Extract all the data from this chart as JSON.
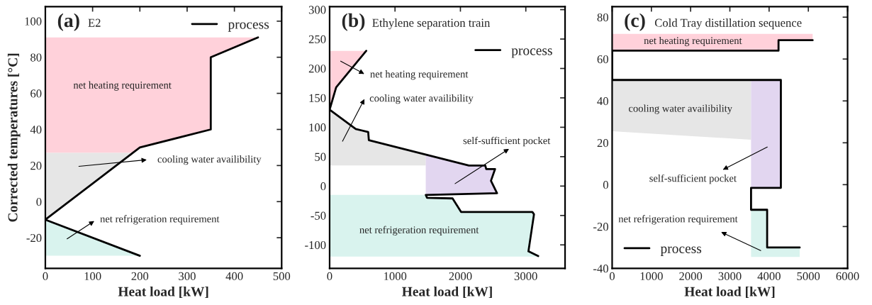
{
  "chart_data": [
    {
      "type": "line",
      "title": "(a)",
      "subtitle": "E2",
      "xlabel": "Heat load [kW]",
      "ylabel": "Corrected temperatures [°C]",
      "xlim": [
        0,
        500
      ],
      "ylim": [
        -37,
        108
      ],
      "xticks": [
        0,
        100,
        200,
        300,
        400,
        500
      ],
      "yticks": [
        -20,
        0,
        20,
        40,
        60,
        80,
        100
      ],
      "legend": "top right",
      "series": [
        {
          "type": "area",
          "color": "#ffd1da",
          "x": [
            0,
            185,
            200,
            350,
            350,
            450,
            0
          ],
          "values": [
            27,
            27,
            30,
            40,
            80,
            91,
            91
          ]
        },
        {
          "type": "area",
          "color": "#e6e6e6",
          "x": [
            0,
            185,
            0
          ],
          "values": [
            -10,
            27,
            27
          ]
        },
        {
          "type": "area",
          "color": "#d9f3ee",
          "x": [
            0,
            200,
            0
          ],
          "values": [
            -10,
            -30,
            -30
          ]
        },
        {
          "name": "process",
          "color": "#000000",
          "x": [
            200,
            0,
            200,
            350,
            350,
            450
          ],
          "values": [
            -30,
            -10,
            30,
            40,
            80,
            91
          ]
        }
      ],
      "annotations": [
        "net heating requirement",
        "cooling water availibility",
        "net refrigeration requirement"
      ]
    },
    {
      "type": "line",
      "title": "(b)",
      "subtitle": "Ethylene separation train",
      "xlabel": "Heat load [kW]",
      "xlim": [
        0,
        3600
      ],
      "ylim": [
        -140,
        305
      ],
      "xticks": [
        0,
        1000,
        2000,
        3000
      ],
      "yticks": [
        -100,
        -50,
        0,
        50,
        100,
        150,
        200,
        250,
        300
      ],
      "legend": "top right",
      "series": [
        {
          "type": "area",
          "color": "#ffd1da",
          "x": [
            0,
            100,
            560,
            0
          ],
          "values": [
            130,
            168,
            230,
            230
          ]
        },
        {
          "type": "area",
          "color": "#e6e6e6",
          "x": [
            0,
            400,
            590,
            600,
            1470,
            1470,
            0
          ],
          "values": [
            130,
            97,
            92,
            78,
            54,
            35,
            35
          ]
        },
        {
          "type": "area",
          "color": "#e2d6f0",
          "x": [
            1470,
            2130,
            2380,
            2395,
            2530,
            2467,
            2560,
            1470
          ],
          "values": [
            54,
            35,
            35,
            29,
            29,
            9,
            -12,
            -15
          ]
        },
        {
          "type": "area",
          "color": "#d9f3ee",
          "x": [
            0,
            1470,
            1490,
            1880,
            2010,
            3100,
            3125,
            3040,
            3190,
            0
          ],
          "values": [
            -15,
            -15,
            -20,
            -21,
            -44,
            -44,
            -48,
            -111,
            -120,
            -120
          ]
        },
        {
          "name": "process",
          "color": "#000000",
          "x": [
            560,
            100,
            0,
            400,
            590,
            600,
            2130,
            2380,
            2395,
            2530,
            2467,
            2560,
            1470,
            1490,
            1880,
            2010,
            3100,
            3125,
            3040,
            3190
          ],
          "values": [
            230,
            168,
            130,
            97,
            92,
            78,
            35,
            35,
            29,
            29,
            9,
            -12,
            -15,
            -20,
            -21,
            -44,
            -44,
            -48,
            -111,
            -119
          ]
        }
      ],
      "annotations": [
        "net heating requirement",
        "cooling water availibility",
        "self-sufficient pocket",
        "net refrigeration requirement"
      ]
    },
    {
      "type": "line",
      "title": "(c)",
      "subtitle": "Cold Tray distillation sequence",
      "xlabel": "Heat load [kW]",
      "xlim": [
        0,
        6000
      ],
      "ylim": [
        -40,
        85
      ],
      "xticks": [
        0,
        1000,
        2000,
        3000,
        4000,
        5000,
        6000
      ],
      "yticks": [
        -40,
        -20,
        0,
        20,
        40,
        60,
        80
      ],
      "legend": "bottom left",
      "series": [
        {
          "type": "area",
          "color": "#ffd1da",
          "x": [
            0,
            4240,
            4240,
            5110,
            5110,
            0
          ],
          "values": [
            64,
            64,
            69,
            69,
            72,
            72
          ]
        },
        {
          "type": "area",
          "color": "#e6e6e6",
          "x": [
            0,
            3540,
            3540,
            0
          ],
          "values": [
            50,
            50,
            21.5,
            25.5
          ]
        },
        {
          "type": "area",
          "color": "#e2d6f0",
          "x": [
            3540,
            4300,
            4300,
            3540
          ],
          "values": [
            50,
            50,
            -1.5,
            -1.5
          ]
        },
        {
          "type": "area",
          "color": "#d9f3ee",
          "x": [
            3540,
            3950,
            3950,
            4780,
            4780,
            3540
          ],
          "values": [
            -12,
            -12,
            -30,
            -30,
            -34.5,
            -34.5
          ]
        },
        {
          "name": "process",
          "color": "#000000",
          "x": [
            5110,
            4240,
            4240,
            0,
            0,
            4300,
            4300,
            3540,
            3540,
            3950,
            3950,
            4780
          ],
          "values": [
            69,
            69,
            64,
            64,
            50,
            50,
            -1.5,
            -1.5,
            -12,
            -12,
            -30,
            -30
          ]
        }
      ],
      "annotations": [
        "net heating requirement",
        "cooling water availibility",
        "self-sufficient pocket",
        "net refrigeration requirement"
      ]
    }
  ]
}
